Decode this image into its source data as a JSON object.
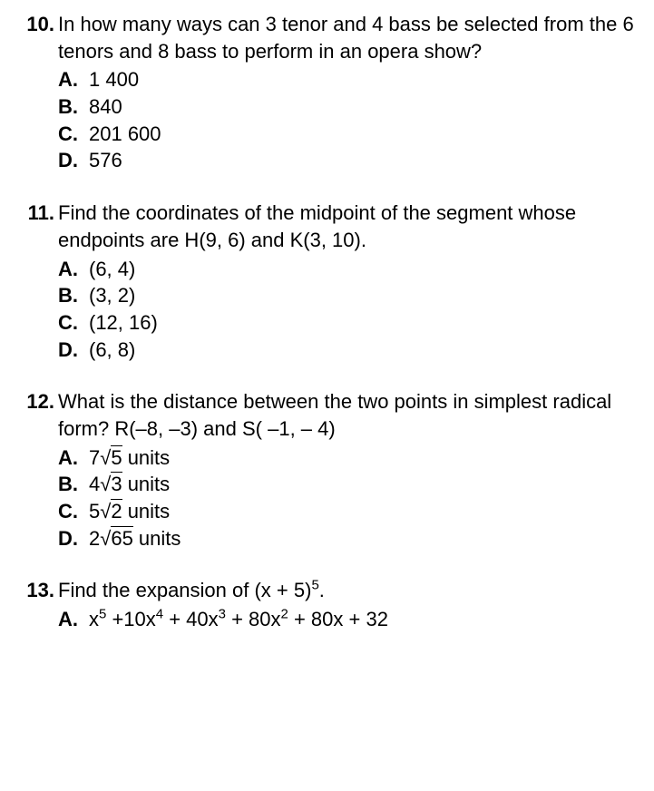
{
  "questions": [
    {
      "number": "10.",
      "text": "In how many ways can 3 tenor and 4 bass be selected from the 6 tenors and 8 bass to perform in an opera show?",
      "options": [
        {
          "letter": "A.",
          "text": "1 400"
        },
        {
          "letter": "B.",
          "text": "840"
        },
        {
          "letter": "C.",
          "text": "201 600"
        },
        {
          "letter": "D.",
          "text": "576"
        }
      ]
    },
    {
      "number": "11.",
      "text": "Find the coordinates of the midpoint of the segment whose endpoints are H(9, 6) and K(3, 10).",
      "options": [
        {
          "letter": "A.",
          "text": "(6, 4)"
        },
        {
          "letter": "B.",
          "text": "(3, 2)"
        },
        {
          "letter": "C.",
          "text": "(12, 16)"
        },
        {
          "letter": "D.",
          "text": "(6, 8)"
        }
      ]
    },
    {
      "number": "12.",
      "text": "What is the distance between the two points in simplest radical form? R(–8, –3) and S( –1, – 4)",
      "options": [
        {
          "letter": "A.",
          "coef": "7",
          "radicand": "5",
          "suffix": " units"
        },
        {
          "letter": "B.",
          "coef": "4",
          "radicand": "3",
          "suffix": " units"
        },
        {
          "letter": "C.",
          "coef": "5",
          "radicand": "2",
          "suffix": " units"
        },
        {
          "letter": "D.",
          "coef": "2",
          "radicand": "65",
          "suffix": " units"
        }
      ]
    },
    {
      "number": "13.",
      "text_pre": "Find the expansion of (x + 5)",
      "text_sup": "5",
      "text_post": ".",
      "options": [
        {
          "letter": "A.",
          "poly": "x^5 +10x^4 + 40x^3 + 80x^2 + 80x + 32"
        }
      ]
    }
  ]
}
